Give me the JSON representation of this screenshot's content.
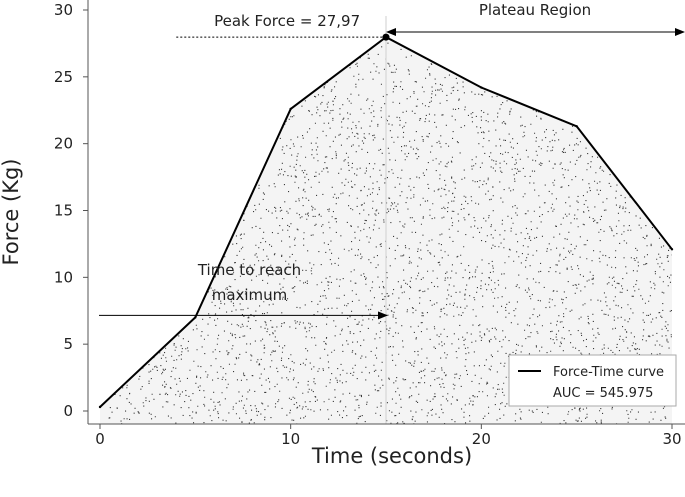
{
  "chart_data": {
    "type": "area",
    "xlabel": "Time (seconds)",
    "ylabel": "Force (Kg)",
    "xlim": [
      0,
      30
    ],
    "ylim": [
      0,
      30
    ],
    "xticks": [
      0,
      10,
      20,
      30
    ],
    "yticks": [
      0,
      5,
      10,
      15,
      20,
      25,
      30
    ],
    "grid": false,
    "series": [
      {
        "name": "Force-Time curve",
        "x": [
          0,
          5,
          10,
          15,
          20,
          25,
          30
        ],
        "y": [
          0.3,
          7,
          22.6,
          27.97,
          24.2,
          21.3,
          12.1
        ],
        "color": "#000000",
        "fill": "stippled"
      }
    ],
    "legend": {
      "position": "bottom-right",
      "entries": [
        "Force-Time curve"
      ],
      "note": "AUC = 545.975"
    },
    "annotations": {
      "peak_label": "Peak Force = 27,97",
      "plateau_label": "Plateau Region",
      "time_label_line1": "Time to reach",
      "time_label_line2": "maximum",
      "peak_x": 15,
      "peak_y": 27.97,
      "peak_line_start_x": 4,
      "time_arrow_y": 7.3,
      "plateau_arrow_y": 29.8,
      "plateau_arrow_from_x": 15,
      "plateau_arrow_to_x": 30.7
    }
  }
}
